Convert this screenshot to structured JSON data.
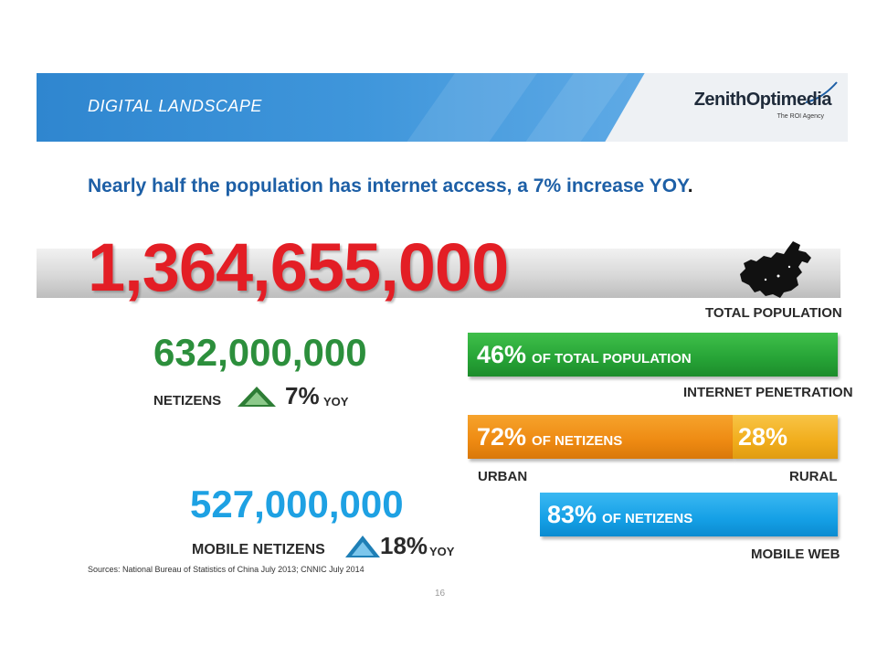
{
  "header": {
    "title": "DIGITAL LANDSCAPE",
    "logo_name": "ZenithOptimedia",
    "logo_tagline": "The ROI Agency"
  },
  "headline": {
    "text": "Nearly half the population has internet access, a 7% increase YOY",
    "period": "."
  },
  "total": {
    "number": "1,364,655,000",
    "label": "TOTAL POPULATION"
  },
  "netizens": {
    "number": "632,000,000",
    "label": "NETIZENS",
    "change": "7%",
    "change_unit": "YOY"
  },
  "mobile": {
    "number": "527,000,000",
    "label": "MOBILE NETIZENS",
    "change": "18%",
    "change_unit": "YOY"
  },
  "bars": {
    "penetration": {
      "value": "46%",
      "text": "OF TOTAL POPULATION",
      "label": "INTERNET PENETRATION",
      "share": 0.46
    },
    "urban": {
      "value": "72%",
      "text": "OF NETIZENS",
      "label": "URBAN",
      "share": 0.72
    },
    "rural": {
      "value": "28%",
      "label": "RURAL",
      "share": 0.28
    },
    "mobile_web": {
      "value": "83%",
      "text": "OF NETIZENS",
      "label": "MOBILE WEB",
      "share": 0.83
    }
  },
  "footer": {
    "sources": "Sources: National Bureau of Statistics of China July 2013; CNNIC July 2014",
    "page_number": "16"
  },
  "colors": {
    "headline": "#1d5fa6",
    "total": "#e31e25",
    "netizens": "#2c8f3c",
    "mobile": "#1ea1e3",
    "penetration_bar": "#26a336",
    "urban_bar": "#ee8a12",
    "rural_bar": "#f1ad1c",
    "mobile_bar": "#15a0e6"
  },
  "icons": {
    "map": "china-map-icon",
    "up_arrow": "up-triangle-icon"
  }
}
